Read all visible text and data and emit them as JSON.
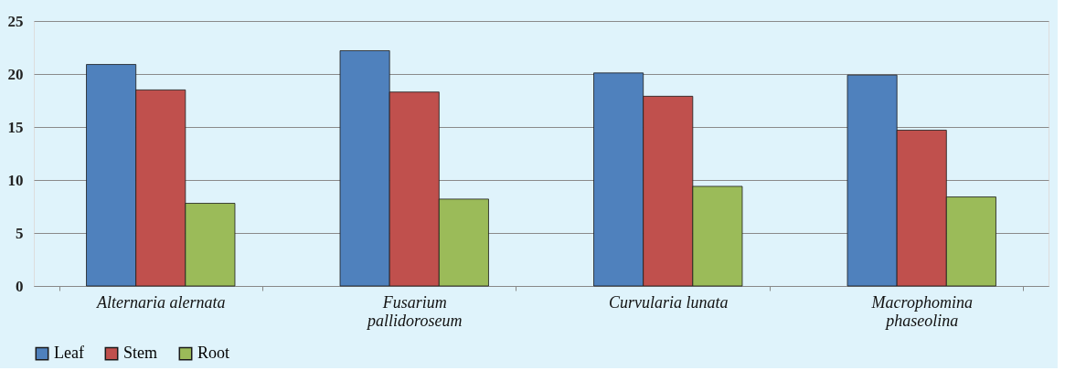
{
  "chart_data": {
    "type": "bar",
    "categories": [
      "Alternaria alernata",
      "Fusarium pallidoroseum",
      "Curvularia lunata",
      "Macrophomina phaseolina"
    ],
    "series": [
      {
        "name": "Leaf",
        "color": "#4f81bd",
        "values": [
          20.9,
          22.2,
          20.1,
          19.9
        ]
      },
      {
        "name": "Stem",
        "color": "#c0504d",
        "values": [
          18.5,
          18.3,
          17.9,
          14.7
        ]
      },
      {
        "name": "Root",
        "color": "#9bbb59",
        "values": [
          7.8,
          8.2,
          9.4,
          8.4
        ]
      }
    ],
    "ylim": [
      0,
      25
    ],
    "yticks": [
      0,
      5,
      10,
      15,
      20,
      25
    ],
    "grid": "y",
    "legend": "bottom"
  }
}
